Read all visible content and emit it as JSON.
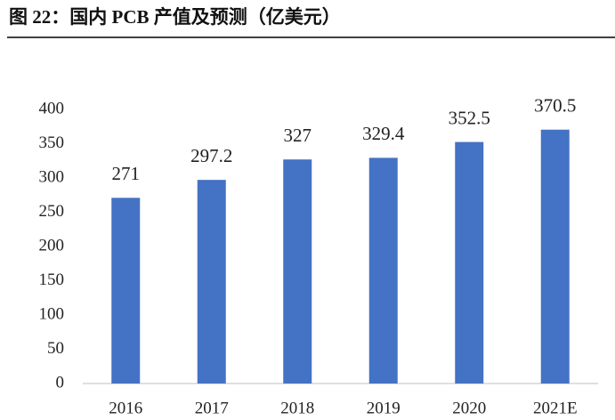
{
  "chart_data": {
    "type": "bar",
    "title": "图 22：国内 PCB 产值及预测（亿美元）",
    "categories": [
      "2016",
      "2017",
      "2018",
      "2019",
      "2020",
      "2021E"
    ],
    "values": [
      271,
      297.2,
      327,
      329.4,
      352.5,
      370.5
    ],
    "color": "#4472c4",
    "ylim": [
      0,
      400
    ],
    "yticks": [
      0,
      50,
      100,
      150,
      200,
      250,
      300,
      350,
      400
    ],
    "grid": false,
    "data_labels": true
  }
}
